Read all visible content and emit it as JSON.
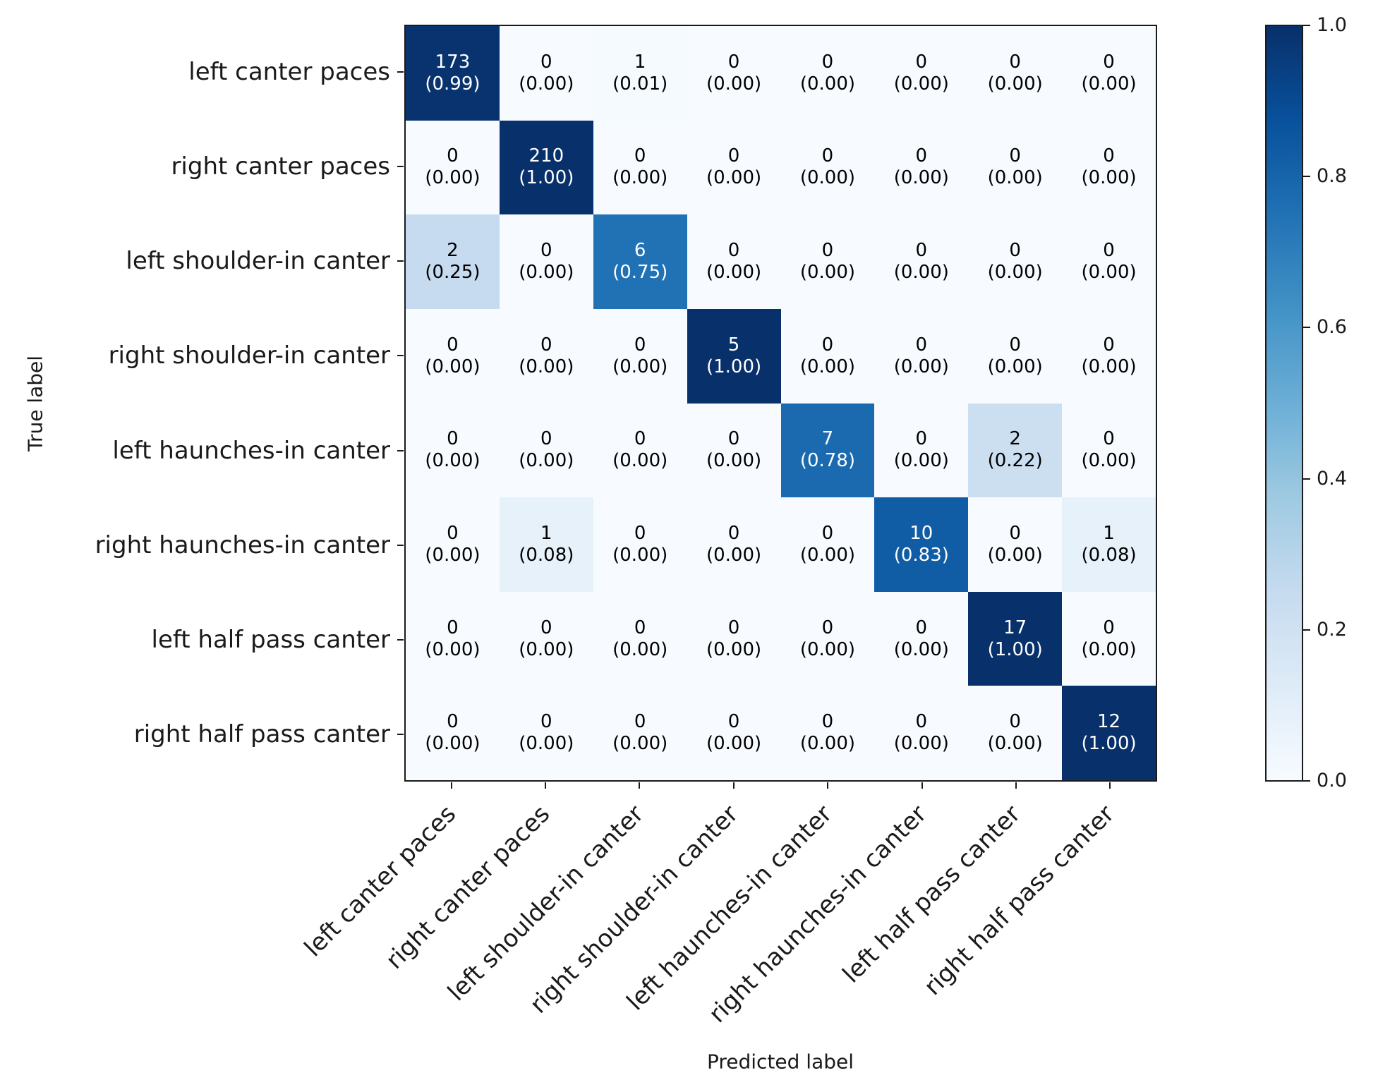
{
  "chart_data": {
    "type": "heatmap",
    "title": "",
    "xlabel": "Predicted label",
    "ylabel": "True label",
    "categories": [
      "left canter paces",
      "right canter paces",
      "left shoulder-in canter",
      "right shoulder-in canter",
      "left haunches-in canter",
      "right haunches-in canter",
      "left half pass canter",
      "right half pass canter"
    ],
    "cell_format": "count newline (row-normalized proportion, 2 decimals)",
    "rows": [
      {
        "label": "left canter paces",
        "counts": [
          173,
          0,
          1,
          0,
          0,
          0,
          0,
          0
        ],
        "proportions": [
          0.99,
          0.0,
          0.01,
          0.0,
          0.0,
          0.0,
          0.0,
          0.0
        ]
      },
      {
        "label": "right canter paces",
        "counts": [
          0,
          210,
          0,
          0,
          0,
          0,
          0,
          0
        ],
        "proportions": [
          0.0,
          1.0,
          0.0,
          0.0,
          0.0,
          0.0,
          0.0,
          0.0
        ]
      },
      {
        "label": "left shoulder-in canter",
        "counts": [
          2,
          0,
          6,
          0,
          0,
          0,
          0,
          0
        ],
        "proportions": [
          0.25,
          0.0,
          0.75,
          0.0,
          0.0,
          0.0,
          0.0,
          0.0
        ]
      },
      {
        "label": "right shoulder-in canter",
        "counts": [
          0,
          0,
          0,
          5,
          0,
          0,
          0,
          0
        ],
        "proportions": [
          0.0,
          0.0,
          0.0,
          1.0,
          0.0,
          0.0,
          0.0,
          0.0
        ]
      },
      {
        "label": "left haunches-in canter",
        "counts": [
          0,
          0,
          0,
          0,
          7,
          0,
          2,
          0
        ],
        "proportions": [
          0.0,
          0.0,
          0.0,
          0.0,
          0.78,
          0.0,
          0.22,
          0.0
        ]
      },
      {
        "label": "right haunches-in canter",
        "counts": [
          0,
          1,
          0,
          0,
          0,
          10,
          0,
          1
        ],
        "proportions": [
          0.0,
          0.08,
          0.0,
          0.0,
          0.0,
          0.83,
          0.0,
          0.08
        ]
      },
      {
        "label": "left half pass canter",
        "counts": [
          0,
          0,
          0,
          0,
          0,
          0,
          17,
          0
        ],
        "proportions": [
          0.0,
          0.0,
          0.0,
          0.0,
          0.0,
          0.0,
          1.0,
          0.0
        ]
      },
      {
        "label": "right half pass canter",
        "counts": [
          0,
          0,
          0,
          0,
          0,
          0,
          0,
          12
        ],
        "proportions": [
          0.0,
          0.0,
          0.0,
          0.0,
          0.0,
          0.0,
          0.0,
          1.0
        ]
      }
    ],
    "colorbar": {
      "colormap": "Blues",
      "min": 0.0,
      "max": 1.0,
      "tick_labels": [
        "1.0",
        "0.8",
        "0.6",
        "0.4",
        "0.2",
        "0.0"
      ],
      "position": "right"
    },
    "legend": null,
    "grid": false
  },
  "colors": {
    "background": "#ffffff",
    "axis": "#1a1a1a",
    "cell_text_dark": "#000000",
    "cell_text_light": "#ffffff",
    "blues_anchors": [
      "#f7fbff",
      "#deebf7",
      "#c6dbef",
      "#9ecae1",
      "#6baed6",
      "#4292c6",
      "#2171b5",
      "#08519c",
      "#08306b"
    ]
  }
}
